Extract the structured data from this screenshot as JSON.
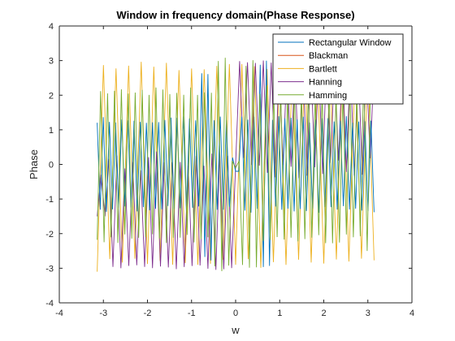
{
  "chart_data": {
    "type": "line",
    "title": "Window in frequency domain(Phase Response)",
    "xlabel": "w",
    "ylabel": "Phase",
    "xlim": [
      -4,
      4
    ],
    "ylim": [
      -4,
      4
    ],
    "xticks": [
      -4,
      -3,
      -2,
      -1,
      0,
      1,
      2,
      3,
      4
    ],
    "yticks": [
      -4,
      -3,
      -2,
      -1,
      0,
      1,
      2,
      3,
      4
    ],
    "grid": false,
    "legend_position": "top-right",
    "x_range": [
      -3.1416,
      3.1416
    ],
    "series": [
      {
        "name": "Rectangular Window",
        "color": "#0072BD",
        "description": "phase oscillates rapidly between about -1.3 and 1.3 for |w|>0.5, larger near 0",
        "x": [
          -3.14,
          -2.6,
          -2.0,
          -1.5,
          -1.0,
          -0.6,
          -0.35,
          -0.15,
          0.0,
          0.15,
          0.35,
          0.6,
          1.0,
          1.5,
          2.0,
          2.6,
          3.14
        ],
        "y_env": [
          1.2,
          1.1,
          1.2,
          1.3,
          1.3,
          1.5,
          2.9,
          1.2,
          0.0,
          -1.2,
          -2.9,
          -1.5,
          -1.3,
          -1.3,
          -1.2,
          -1.1,
          -1.2
        ]
      },
      {
        "name": "Blackman",
        "color": "#D95319",
        "description": "hidden behind other series",
        "x": [],
        "y_env": []
      },
      {
        "name": "Bartlett",
        "color": "#EDB120",
        "description": "sawtooth-like phase spanning -3.1 to 3.1 across full range",
        "x": [
          -3.14,
          3.14
        ],
        "y_env": [
          2.9,
          2.9
        ]
      },
      {
        "name": "Hanning",
        "color": "#7E2F8E",
        "description": "phase oscillating between about -3 and 0 for w<0, 0 and 3 for w>0",
        "x": [
          -3.14,
          3.14
        ],
        "y_env": [
          3.0,
          3.0
        ]
      },
      {
        "name": "Hamming",
        "color": "#77AC30",
        "description": "phase oscillating between about -2.2 and 2.2",
        "x": [
          -3.14,
          3.14
        ],
        "y_env": [
          2.2,
          2.2
        ]
      }
    ]
  }
}
